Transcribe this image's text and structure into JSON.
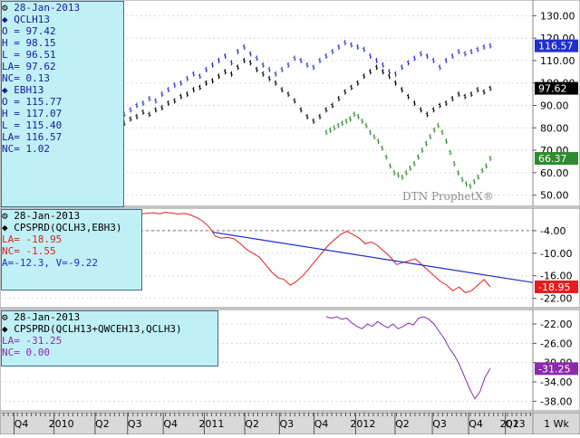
{
  "chart_data": [
    {
      "type": "line",
      "panel": "price",
      "date_label": "28-Jan-2013",
      "watermark": "DTN ProphetX®",
      "yticks": [
        130.0,
        120.0,
        110.0,
        100.0,
        90.0,
        80.0,
        70.0,
        60.0,
        50.0
      ],
      "ylim": [
        45,
        137
      ],
      "series": [
        {
          "name": "QCLH13",
          "color": "#1f2fd0",
          "fields": [
            "O = 97.42",
            "H = 98.15",
            "L = 96.51",
            "LA= 97.62",
            "NC= 0.13"
          ],
          "last_label": "97.62",
          "last": 97.62,
          "values": [
            82,
            84,
            85,
            87,
            86,
            88,
            89,
            91,
            92,
            94,
            95,
            97,
            98,
            100,
            101,
            103,
            105,
            104,
            107,
            110,
            109,
            106,
            104,
            102,
            100,
            97,
            95,
            92,
            88,
            85,
            83,
            85,
            88,
            90,
            93,
            96,
            98,
            100,
            103,
            105,
            107,
            105,
            103,
            100,
            97,
            94,
            91,
            88,
            86,
            88,
            90,
            91,
            93,
            95,
            94,
            95,
            97,
            96,
            97.62
          ]
        },
        {
          "name": "EBH13",
          "color": "#1f2fd0",
          "fields": [
            "O = 115.77",
            "H = 117.07",
            "L = 115.40",
            "LA= 116.57",
            "NC= 1.02"
          ],
          "last_label": "116.57",
          "last": 116.57,
          "values": [
            86,
            88,
            90,
            91,
            93,
            92,
            95,
            97,
            99,
            100,
            102,
            104,
            103,
            106,
            108,
            110,
            112,
            109,
            114,
            116,
            113,
            111,
            108,
            106,
            104,
            106,
            108,
            111,
            110,
            108,
            107,
            110,
            112,
            114,
            116,
            118,
            117,
            116,
            115,
            112,
            110,
            108,
            105,
            104,
            107,
            109,
            111,
            113,
            112,
            110,
            107,
            110,
            112,
            114,
            113,
            114,
            115,
            116,
            116.57
          ]
        },
        {
          "name": "",
          "color": "#2e8b2e",
          "last_label": "66.37",
          "last": 66.37,
          "values": [
            78,
            79,
            80,
            81,
            82,
            83,
            84,
            86,
            85,
            83,
            81,
            78,
            76,
            74,
            71,
            67,
            63,
            60,
            59,
            58,
            60,
            62,
            64,
            67,
            70,
            73,
            76,
            79,
            81,
            78,
            74,
            69,
            64,
            60,
            57,
            55,
            54,
            56,
            58,
            61,
            63,
            66.37
          ]
        }
      ]
    },
    {
      "type": "line",
      "panel": "spread1",
      "date_label": "28-Jan-2013",
      "title": "CPSPRD(QCLH3,EBH3)",
      "color": "#e41d1d",
      "fields": [
        "LA= -18.95",
        "NC= -1.55",
        "A=-12.3, V=-9.22"
      ],
      "yticks": [
        -4.0,
        -10.0,
        -16.0,
        -22.0
      ],
      "ylim": [
        -24.5,
        2
      ],
      "last_label": "-18.95",
      "last": -18.95,
      "values": [
        0.5,
        0.6,
        0.8,
        0.5,
        0.9,
        0.7,
        0.4,
        0.6,
        0.2,
        -0.5,
        -1.5,
        -3,
        -5.5,
        -6,
        -5.8,
        -6.2,
        -7.5,
        -9,
        -10,
        -11,
        -13,
        -15,
        -16.5,
        -17,
        -18.5,
        -17.5,
        -16,
        -14,
        -12,
        -10,
        -8,
        -6.5,
        -5,
        -4.2,
        -5,
        -6,
        -7.5,
        -7,
        -8,
        -9.5,
        -11,
        -13,
        -12.5,
        -12,
        -11.5,
        -13,
        -14.5,
        -16,
        -17.5,
        -18.5,
        -20,
        -19,
        -20.5,
        -20,
        -18.5,
        -17,
        -18.95
      ],
      "trendline": [
        {
          "x": 0.399,
          "y": -4.4
        },
        {
          "x": 1.0,
          "y": -17.8
        }
      ],
      "ref_line": -4.0
    },
    {
      "type": "line",
      "panel": "spread2",
      "date_label": "28-Jan-2013",
      "title": "CPSPRD(QCLH13+QWCEH13,QCLH3)",
      "color": "#8b2ab0",
      "fields": [
        "LA= -31.25",
        "NC= 0.00"
      ],
      "yticks": [
        -22.0,
        -26.0,
        -30.0,
        -34.0,
        -38.0
      ],
      "ylim": [
        -40,
        -19
      ],
      "last_label": "-31.25",
      "last": -31.25,
      "values": [
        -20.5,
        -20.8,
        -20.5,
        -21,
        -20.8,
        -21.8,
        -22.5,
        -23,
        -22,
        -22.5,
        -21.5,
        -22.2,
        -22.8,
        -22,
        -23,
        -22.5,
        -21.8,
        -22.2,
        -20.8,
        -20.5,
        -21,
        -22,
        -23.5,
        -25,
        -27,
        -28.5,
        -30.5,
        -33,
        -35.5,
        -37.5,
        -36,
        -33,
        -31.25
      ]
    }
  ],
  "x_axis": {
    "labels": [
      {
        "t": "Q4",
        "p": 0.04
      },
      {
        "t": "2010",
        "p": 0.115
      },
      {
        "t": "Q2",
        "p": 0.192
      },
      {
        "t": "Q3",
        "p": 0.253
      },
      {
        "t": "Q4",
        "p": 0.32
      },
      {
        "t": "2011",
        "p": 0.397
      },
      {
        "t": "Q2",
        "p": 0.473
      },
      {
        "t": "Q3",
        "p": 0.538
      },
      {
        "t": "Q4",
        "p": 0.603
      },
      {
        "t": "2012",
        "p": 0.681
      },
      {
        "t": "Q2",
        "p": 0.755
      },
      {
        "t": "Q3",
        "p": 0.825
      },
      {
        "t": "Q4",
        "p": 0.893
      },
      {
        "t": "2013",
        "p": 0.962
      }
    ],
    "right_labels": [
      {
        "t": "Q2",
        "p": 0.7
      }
    ],
    "period": "1 Wk"
  }
}
